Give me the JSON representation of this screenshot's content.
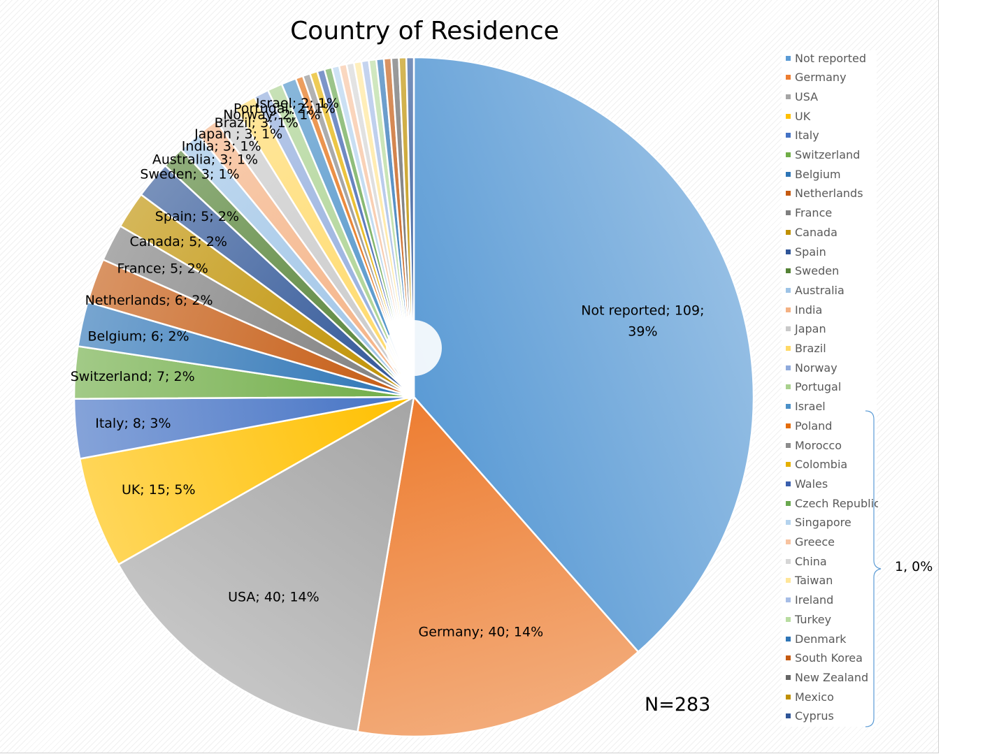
{
  "chart_data": {
    "type": "pie",
    "title": "Country of Residence",
    "total_label": "N=283",
    "legend_placement": "right",
    "grouped_note": "1, 0%",
    "slices": [
      {
        "name": "Not reported",
        "value": 109,
        "label": "Not reported; 109;",
        "label2": "39%",
        "color": "#5B9BD5"
      },
      {
        "name": "Germany",
        "value": 40,
        "label": "Germany; 40; 14%",
        "color": "#ED7D31"
      },
      {
        "name": "USA",
        "value": 40,
        "label": "USA; 40; 14%",
        "color": "#A5A5A5"
      },
      {
        "name": "UK",
        "value": 15,
        "label": "UK; 15; 5%",
        "color": "#FFC000"
      },
      {
        "name": "Italy",
        "value": 8,
        "label": "Italy; 8; 3%",
        "color": "#4472C4"
      },
      {
        "name": "Switzerland",
        "value": 7,
        "label": "Switzerland; 7; 2%",
        "color": "#70AD47"
      },
      {
        "name": "Belgium",
        "value": 6,
        "label": "Belgium; 6; 2%",
        "color": "#2E75B6"
      },
      {
        "name": "Netherlands",
        "value": 6,
        "label": "Netherlands; 6; 2%",
        "color": "#C55A11"
      },
      {
        "name": "France",
        "value": 5,
        "label": "France; 5; 2%",
        "color": "#7F7F7F"
      },
      {
        "name": "Canada",
        "value": 5,
        "label": "Canada; 5; 2%",
        "color": "#BF9000"
      },
      {
        "name": "Spain",
        "value": 5,
        "label": "Spain; 5; 2%",
        "color": "#2F5597"
      },
      {
        "name": "Sweden",
        "value": 3,
        "label": "Sweden; 3; 1%",
        "color": "#548235"
      },
      {
        "name": "Australia",
        "value": 3,
        "label": "Australia; 3; 1%",
        "color": "#9DC3E6"
      },
      {
        "name": "India",
        "value": 3,
        "label": "India; 3; 1%",
        "color": "#F4B183"
      },
      {
        "name": "Japan",
        "value": 3,
        "label": "Japan ; 3; 1%",
        "color": "#C9C9C9"
      },
      {
        "name": "Brazil",
        "value": 3,
        "label": "Brazil; 3; 1%",
        "color": "#FFD966"
      },
      {
        "name": "Norway",
        "value": 2,
        "label": "Norway; 2; 1%",
        "color": "#8FAADC"
      },
      {
        "name": "Portugal",
        "value": 2,
        "label": "Portugal; 2; 1%",
        "color": "#A9D18E"
      },
      {
        "name": "Israel",
        "value": 2,
        "label": "Israel; 2; 1%",
        "color": "#4A90C8"
      },
      {
        "name": "Poland",
        "value": 1,
        "color": "#E46C0A"
      },
      {
        "name": "Morocco",
        "value": 1,
        "color": "#8C8C8C"
      },
      {
        "name": "Colombia",
        "value": 1,
        "color": "#E5B000"
      },
      {
        "name": "Wales",
        "value": 1,
        "color": "#3A5FAD"
      },
      {
        "name": "Czech Republic",
        "value": 1,
        "color": "#6AA84F"
      },
      {
        "name": "Singapore",
        "value": 1,
        "color": "#B4D3EE"
      },
      {
        "name": "Greece",
        "value": 1,
        "color": "#F7C3A0"
      },
      {
        "name": "China",
        "value": 1,
        "color": "#D6D6D6"
      },
      {
        "name": "Taiwan",
        "value": 1,
        "color": "#FFE699"
      },
      {
        "name": "Ireland",
        "value": 1,
        "color": "#A6BDE6"
      },
      {
        "name": "Turkey",
        "value": 1,
        "color": "#B8DCA0"
      },
      {
        "name": "Denmark",
        "value": 1,
        "color": "#2E75B6"
      },
      {
        "name": "South Korea",
        "value": 1,
        "color": "#C55A11"
      },
      {
        "name": "New Zealand",
        "value": 1,
        "color": "#666666"
      },
      {
        "name": "Mexico",
        "value": 1,
        "color": "#BF9000"
      },
      {
        "name": "Cyprus",
        "value": 1,
        "color": "#2F5597"
      }
    ]
  }
}
